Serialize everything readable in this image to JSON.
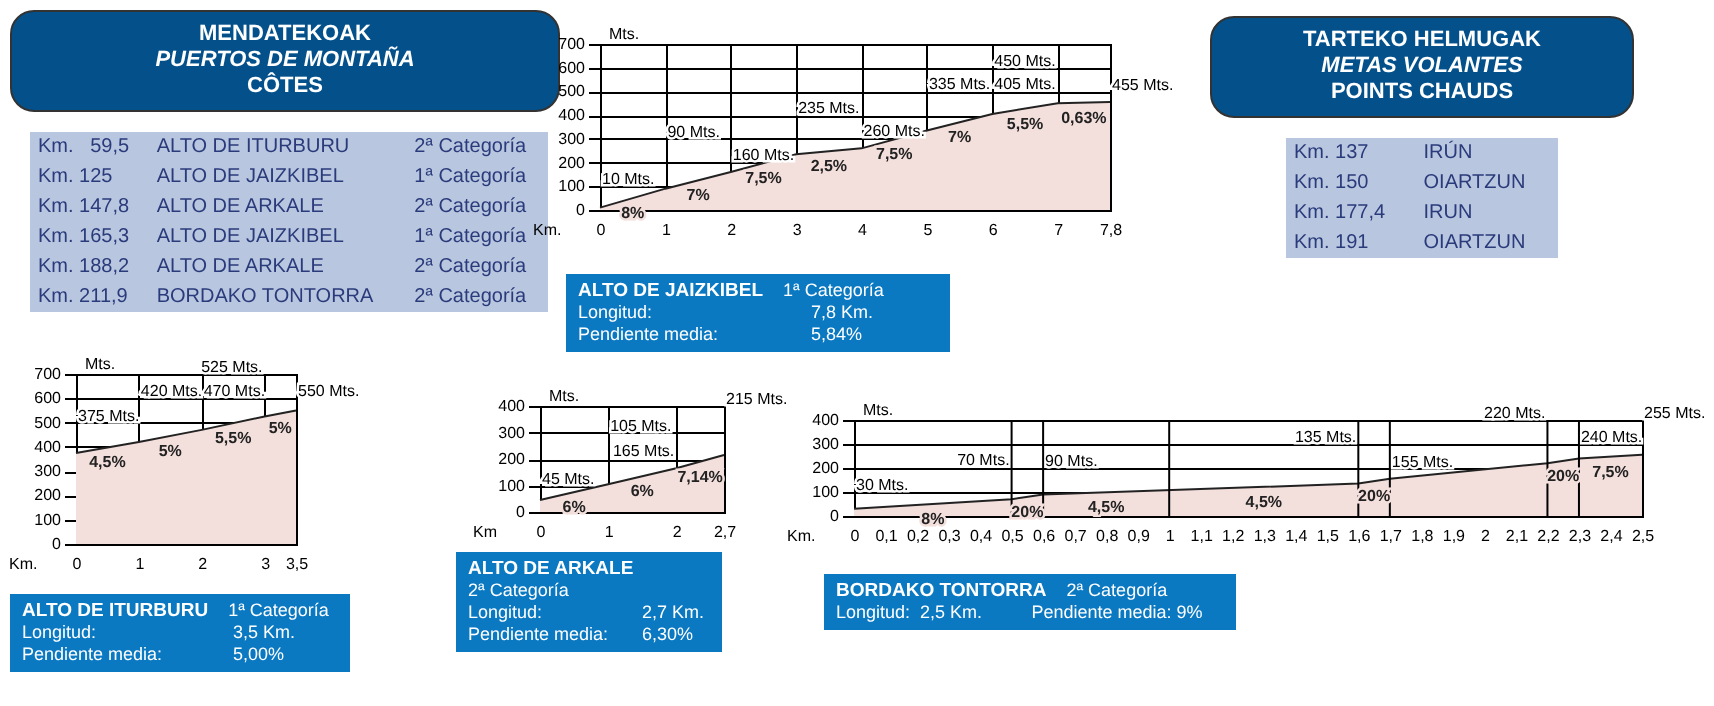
{
  "chart_data": [
    {
      "type": "other",
      "title": "MENDATEKOAK",
      "subtitle": "PUERTOS DE MONTAÑA",
      "annotations": [
        "CÔTES"
      ],
      "cell_labels": [
        [
          "Km.   59,5",
          "ALTO DE ITURBURU",
          "2ª Categoría"
        ],
        [
          "Km. 125",
          "ALTO DE JAIZKIBEL",
          "1ª Categoría"
        ],
        [
          "Km. 147,8",
          "ALTO DE ARKALE",
          "2ª Categoría"
        ],
        [
          "Km. 165,3",
          "ALTO DE JAIZKIBEL",
          "1ª Categoría"
        ],
        [
          "Km. 188,2",
          "ALTO DE ARKALE",
          "2ª Categoría"
        ],
        [
          "Km. 211,9",
          "BORDAKO TONTORRA",
          "2ª Categoría"
        ]
      ]
    },
    {
      "type": "area",
      "title": "ALTO DE JAIZKIBEL",
      "subtitle": "1ª Categoría",
      "xlabel": "Km.",
      "ylabel": "Mts.",
      "x": [
        0,
        1,
        2,
        3,
        4,
        5,
        6,
        7,
        7.8
      ],
      "series": [
        {
          "color": "#f3dfdc",
          "values": [
            10,
            90,
            160,
            235,
            260,
            335,
            405,
            450,
            455
          ],
          "value_labels": [
            "10 Mts.",
            "90 Mts.",
            "160 Mts.",
            "235 Mts.",
            "260 Mts.",
            "335 Mts.",
            "405 Mts.",
            "450 Mts.",
            "455 Mts."
          ]
        }
      ],
      "xlim": [
        0,
        7.8
      ],
      "xticks": [
        0,
        1,
        2,
        3,
        4,
        5,
        6,
        7,
        {
          "value": 7.8,
          "label": "7,8"
        }
      ],
      "ylim": [
        0,
        700
      ],
      "yticks": [
        0,
        100,
        200,
        300,
        400,
        500,
        600,
        700
      ],
      "grid": true,
      "annotations": [
        {
          "text": "8%",
          "x": 0.5,
          "y": 50
        },
        {
          "text": "7%",
          "x": 1.5,
          "y": 125
        },
        {
          "text": "7,5%",
          "x": 2.5,
          "y": 197.5
        },
        {
          "text": "2,5%",
          "x": 3.5,
          "y": 247.5
        },
        {
          "text": "7,5%",
          "x": 4.5,
          "y": 297.5
        },
        {
          "text": "7%",
          "x": 5.5,
          "y": 370
        },
        {
          "text": "5,5%",
          "x": 6.5,
          "y": 427.5
        },
        {
          "text": "0,63%",
          "x": 7.4,
          "y": 452.5
        },
        "Longitud:",
        "7,8 Km.",
        "Pendiente media:",
        "5,84%"
      ]
    },
    {
      "type": "other",
      "title": "TARTEKO HELMUGAK",
      "subtitle": "METAS VOLANTES",
      "annotations": [
        "POINTS CHAUDS"
      ],
      "cell_labels": [
        [
          "Km. 137",
          "IRÚN"
        ],
        [
          "Km. 150",
          "OIARTZUN"
        ],
        [
          "Km. 177,4",
          "IRUN"
        ],
        [
          "Km. 191",
          "OIARTZUN"
        ]
      ]
    },
    {
      "type": "area",
      "title": "ALTO DE ITURBURU",
      "subtitle": "1ª Categoría",
      "xlabel": "Km.",
      "ylabel": "Mts.",
      "x": [
        0,
        1,
        2,
        3,
        3.5
      ],
      "series": [
        {
          "color": "#f3dfdc",
          "values": [
            375,
            420,
            470,
            525,
            550
          ],
          "value_labels": [
            "375 Mts.",
            "420 Mts.",
            "470 Mts.",
            "525 Mts.",
            "550 Mts."
          ]
        }
      ],
      "xlim": [
        0,
        3.5
      ],
      "xticks": [
        0,
        1,
        2,
        3,
        {
          "value": 3.5,
          "label": "3,5"
        }
      ],
      "ylim": [
        0,
        700
      ],
      "yticks": [
        0,
        100,
        200,
        300,
        400,
        500,
        600,
        700
      ],
      "grid": true,
      "annotations": [
        {
          "text": "4,5%",
          "x": 0.5,
          "y": 397.5
        },
        {
          "text": "5%",
          "x": 1.5,
          "y": 445
        },
        {
          "text": "5,5%",
          "x": 2.5,
          "y": 497.5
        },
        {
          "text": "5%",
          "x": 3.25,
          "y": 537.5
        },
        "Longitud:",
        "3,5 Km.",
        "Pendiente media:",
        "5,00%"
      ]
    },
    {
      "type": "area",
      "title": "ALTO DE ARKALE",
      "subtitle": "2ª Categoría",
      "xlabel": "Km",
      "ylabel": "Mts.",
      "x": [
        0,
        1,
        2,
        2.7
      ],
      "series": [
        {
          "color": "#f3dfdc",
          "values": [
            45,
            105,
            165,
            215
          ],
          "value_labels": [
            "45 Mts.",
            "105 Mts.",
            "165 Mts.",
            "215 Mts."
          ]
        }
      ],
      "xlim": [
        0,
        2.7
      ],
      "xticks": [
        0,
        1,
        2,
        {
          "value": 2.7,
          "label": "2,7"
        }
      ],
      "ylim": [
        0,
        400
      ],
      "yticks": [
        0,
        100,
        200,
        300,
        400
      ],
      "grid": true,
      "annotations": [
        {
          "text": "6%",
          "x": 0.5,
          "y": 75
        },
        {
          "text": "6%",
          "x": 1.5,
          "y": 135
        },
        {
          "text": "7,14%",
          "x": 2.35,
          "y": 190
        },
        "Longitud:",
        "2,7 Km.",
        "Pendiente media:",
        "6,30%"
      ]
    },
    {
      "type": "area",
      "title": "BORDAKO TONTORRA",
      "subtitle": "2ª Categoría",
      "xlabel": "Km.",
      "ylabel": "Mts.",
      "x": [
        0,
        0.5,
        0.6,
        1.6,
        1.7,
        2.2,
        2.3,
        2.5
      ],
      "series": [
        {
          "color": "#f3dfdc",
          "values": [
            30,
            70,
            90,
            135,
            155,
            220,
            240,
            255
          ],
          "value_labels": [
            "30 Mts.",
            "70 Mts.",
            "90 Mts.",
            "135 Mts.",
            "155 Mts.",
            "220 Mts.",
            "240 Mts.",
            "255 Mts."
          ]
        }
      ],
      "xlim": [
        0,
        2.5
      ],
      "xticks": [
        0,
        {
          "value": 0.1,
          "label": "0,1"
        },
        {
          "value": 0.2,
          "label": "0,2"
        },
        {
          "value": 0.3,
          "label": "0,3"
        },
        {
          "value": 0.4,
          "label": "0,4"
        },
        {
          "value": 0.5,
          "label": "0,5"
        },
        {
          "value": 0.6,
          "label": "0,6"
        },
        {
          "value": 0.7,
          "label": "0,7"
        },
        {
          "value": 0.8,
          "label": "0,8"
        },
        {
          "value": 0.9,
          "label": "0,9"
        },
        1,
        {
          "value": 1.1,
          "label": "1,1"
        },
        {
          "value": 1.2,
          "label": "1,2"
        },
        {
          "value": 1.3,
          "label": "1,3"
        },
        {
          "value": 1.4,
          "label": "1,4"
        },
        {
          "value": 1.5,
          "label": "1,5"
        },
        {
          "value": 1.6,
          "label": "1,6"
        },
        {
          "value": 1.7,
          "label": "1,7"
        },
        {
          "value": 1.8,
          "label": "1,8"
        },
        {
          "value": 1.9,
          "label": "1,9"
        },
        2,
        {
          "value": 2.1,
          "label": "2,1"
        },
        {
          "value": 2.2,
          "label": "2,2"
        },
        {
          "value": 2.3,
          "label": "2,3"
        },
        {
          "value": 2.4,
          "label": "2,4"
        },
        {
          "value": 2.5,
          "label": "2,5"
        }
      ],
      "ylim": [
        0,
        400
      ],
      "yticks": [
        0,
        100,
        200,
        300,
        400
      ],
      "grid": "y",
      "ref_lines": [
        {
          "axis": "x",
          "value": 0.5
        },
        {
          "axis": "x",
          "value": 0.6
        },
        {
          "axis": "x",
          "value": 1
        },
        {
          "axis": "x",
          "value": 1.6
        },
        {
          "axis": "x",
          "value": 1.7
        },
        {
          "axis": "x",
          "value": 2.2
        },
        {
          "axis": "x",
          "value": 2.3
        }
      ],
      "annotations": [
        {
          "text": "8%",
          "x": 0.25,
          "y": 50
        },
        {
          "text": "20%",
          "x": 0.55,
          "y": 80
        },
        {
          "text": "4,5%",
          "x": 0.8,
          "y": 99
        },
        {
          "text": "4,5%",
          "x": 1.3,
          "y": 121.5
        },
        {
          "text": "20%",
          "x": 1.65,
          "y": 145
        },
        {
          "text": "20%",
          "x": 2.25,
          "y": 230
        },
        {
          "text": "7,5%",
          "x": 2.4,
          "y": 247.5
        },
        "Longitud:  2,5 Km.",
        "Pendiente media: 9%"
      ]
    }
  ]
}
